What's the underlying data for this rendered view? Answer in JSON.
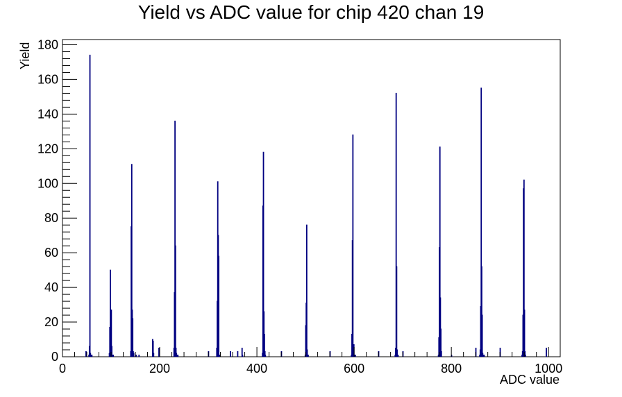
{
  "chart_data": {
    "type": "bar",
    "title": "Yield vs ADC value for chip 420 chan 19",
    "xlabel": "ADC value",
    "ylabel": "Yield",
    "xlim": [
      0,
      1024
    ],
    "ylim": [
      0,
      183
    ],
    "x_ticks": [
      0,
      200,
      400,
      600,
      800,
      1000
    ],
    "y_ticks": [
      0,
      20,
      40,
      60,
      80,
      100,
      120,
      140,
      160,
      180
    ],
    "grid": false,
    "legend": "none",
    "line_color": "#000080",
    "bin_width": 1,
    "x": [
      48,
      54,
      55,
      56,
      57,
      58,
      59,
      60,
      96,
      97,
      98,
      99,
      100,
      101,
      102,
      104,
      140,
      141,
      142,
      143,
      144,
      145,
      146,
      151,
      157,
      185,
      186,
      187,
      198,
      229,
      230,
      231,
      232,
      233,
      234,
      235,
      236,
      237,
      300,
      317,
      318,
      319,
      320,
      321,
      322,
      323,
      345,
      360,
      369,
      370,
      411,
      412,
      413,
      414,
      415,
      416,
      417,
      450,
      499,
      500,
      501,
      502,
      503,
      504,
      505,
      550,
      594,
      595,
      596,
      597,
      598,
      599,
      600,
      601,
      602,
      650,
      684,
      685,
      686,
      687,
      688,
      689,
      690,
      700,
      773,
      774,
      775,
      776,
      777,
      778,
      779,
      800,
      850,
      858,
      859,
      860,
      861,
      862,
      863,
      864,
      865,
      866,
      867,
      900,
      945,
      946,
      947,
      948,
      949,
      950,
      951,
      952,
      995
    ],
    "y": [
      3,
      1,
      6,
      174,
      2,
      1,
      1,
      1,
      2,
      17,
      50,
      20,
      27,
      6,
      1,
      1,
      3,
      75,
      111,
      27,
      22,
      3,
      2,
      1,
      1,
      10,
      9,
      2,
      5,
      5,
      37,
      136,
      64,
      5,
      2,
      1,
      1,
      1,
      3,
      5,
      32,
      101,
      70,
      58,
      1,
      1,
      3,
      3,
      5,
      1,
      2,
      87,
      118,
      26,
      13,
      3,
      1,
      3,
      1,
      18,
      31,
      76,
      4,
      1,
      1,
      3,
      1,
      13,
      67,
      128,
      2,
      7,
      1,
      1,
      1,
      3,
      1,
      5,
      152,
      52,
      4,
      1,
      1,
      3,
      1,
      11,
      63,
      121,
      34,
      16,
      3,
      1,
      5,
      1,
      4,
      29,
      155,
      52,
      24,
      2,
      1,
      1,
      1,
      5,
      1,
      3,
      24,
      97,
      102,
      27,
      3,
      1,
      5
    ]
  }
}
